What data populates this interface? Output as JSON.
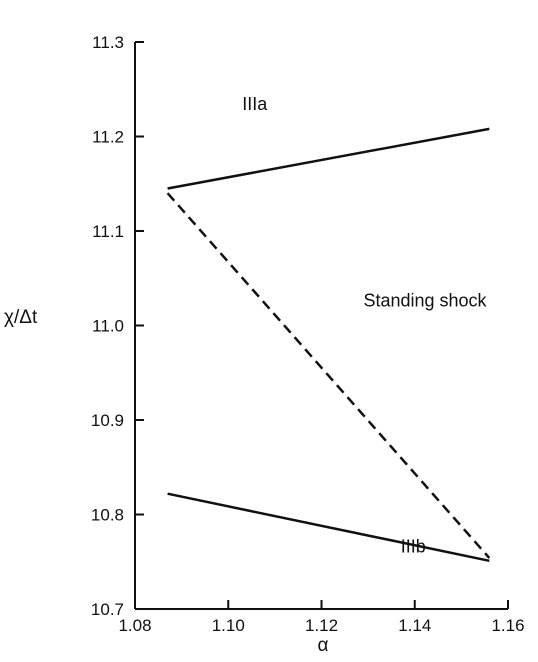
{
  "chart_data": {
    "type": "line",
    "xlabel": "α",
    "ylabel": "χ/Δt",
    "xlim": [
      1.08,
      1.16
    ],
    "ylim": [
      10.7,
      11.3
    ],
    "x_ticks": [
      1.08,
      1.1,
      1.12,
      1.14,
      1.16
    ],
    "x_tick_labels": [
      "1.08",
      "1.10",
      "1.12",
      "1.14",
      "1.16"
    ],
    "y_ticks": [
      10.7,
      10.8,
      10.9,
      11.0,
      11.1,
      11.2,
      11.3
    ],
    "y_tick_labels": [
      "10.7",
      "10.8",
      "10.9",
      "11.0",
      "11.1",
      "11.2",
      "11.3"
    ],
    "grid": false,
    "series": [
      {
        "name": "IIIa",
        "style": "solid",
        "x": [
          1.087,
          1.156
        ],
        "y": [
          11.145,
          11.208
        ]
      },
      {
        "name": "IIIb",
        "style": "solid",
        "x": [
          1.087,
          1.156
        ],
        "y": [
          10.822,
          10.751
        ]
      },
      {
        "name": "Standing shock",
        "style": "dashed",
        "x": [
          1.087,
          1.156
        ],
        "y": [
          11.14,
          10.754
        ]
      }
    ],
    "annotations": [
      {
        "text": "IIIa",
        "x": 1.103,
        "y": 11.228
      },
      {
        "text": "Standing shock",
        "x": 1.129,
        "y": 11.02
      },
      {
        "text": "IIIb",
        "x": 1.137,
        "y": 10.76
      }
    ]
  }
}
